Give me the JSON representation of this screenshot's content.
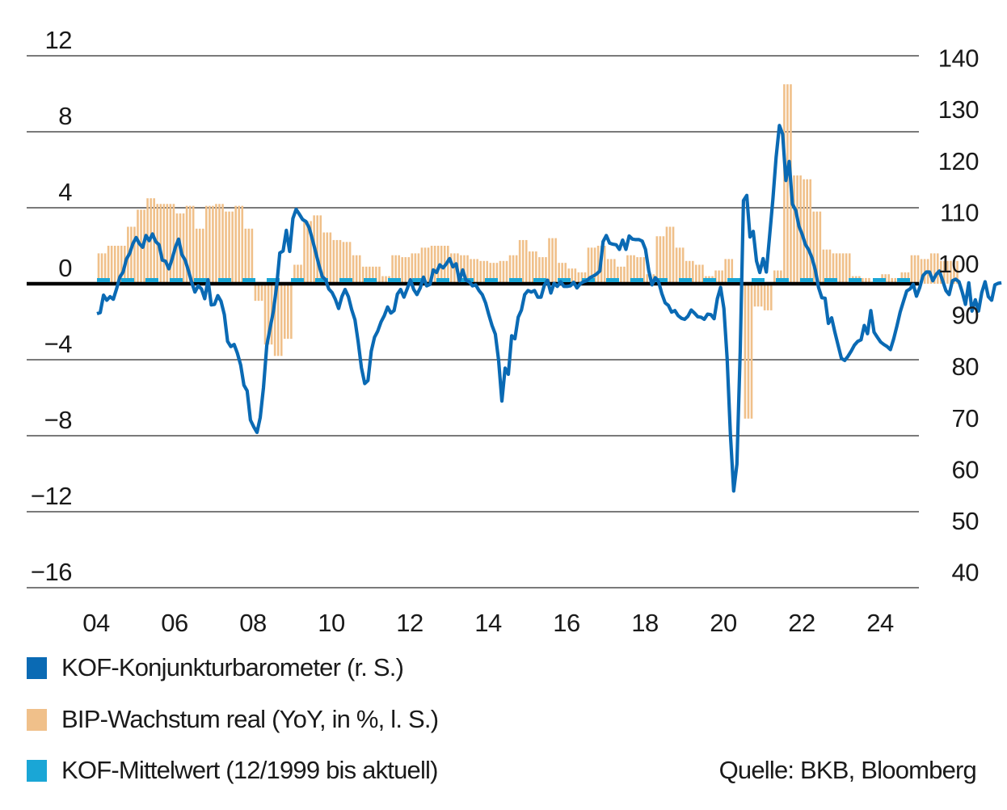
{
  "chart_data": {
    "type": "bar+line",
    "title": "",
    "xlabel": "",
    "ylabel_left": "BIP-Wachstum real (YoY, in %)",
    "ylabel_right": "KOF-Konjunkturbarometer",
    "x_ticks": [
      "04",
      "06",
      "08",
      "10",
      "12",
      "14",
      "16",
      "18",
      "20",
      "22",
      "24"
    ],
    "x_range": [
      2004.0,
      2024.95
    ],
    "y_left": {
      "range": [
        -16,
        12
      ],
      "ticks": [
        "12",
        "8",
        "4",
        "0",
        "−4",
        "−8",
        "−12",
        "−16"
      ],
      "tick_values": [
        12,
        8,
        4,
        0,
        -4,
        -8,
        -12,
        -16
      ]
    },
    "y_right": {
      "range": [
        40,
        140
      ],
      "ticks": [
        "140",
        "130",
        "120",
        "110",
        "100",
        "90",
        "80",
        "70",
        "60",
        "50",
        "40"
      ],
      "tick_values": [
        140,
        130,
        120,
        110,
        100,
        90,
        80,
        70,
        60,
        50,
        40
      ]
    },
    "grid": "horizontal",
    "legend_position": "bottom-left",
    "series": [
      {
        "name": "KOF-Konjunturbarometer (r. S.)",
        "label": "KOF-Konjunkturbarometer (r. S.)",
        "type": "line",
        "axis": "right",
        "color": "#0a6ab4",
        "frequency": "monthly",
        "start": "2004-01",
        "values": [
          93.4,
          93.6,
          97.0,
          96.0,
          96.7,
          96.2,
          98.2,
          100.5,
          101.5,
          104.0,
          105.1,
          107.0,
          108.2,
          107.0,
          106.3,
          108.6,
          107.6,
          108.9,
          107.4,
          106.8,
          103.8,
          103.6,
          102.1,
          104.0,
          106.3,
          107.9,
          104.9,
          103.8,
          101.8,
          99.5,
          97.6,
          98.8,
          98.2,
          96.3,
          100.0,
          95.1,
          95.2,
          96.9,
          95.8,
          93.2,
          88.0,
          87.0,
          87.4,
          85.7,
          83.4,
          79.5,
          78.4,
          72.7,
          71.4,
          70.3,
          73.2,
          79.0,
          87.2,
          90.5,
          93.8,
          98.6,
          105.2,
          105.6,
          109.6,
          105.5,
          111.9,
          113.7,
          112.7,
          111.7,
          111.3,
          110.1,
          107.8,
          105.3,
          102.8,
          100.6,
          100.0,
          98.2,
          97.5,
          96.2,
          94.4,
          96.7,
          98.1,
          96.7,
          94.2,
          92.2,
          87.9,
          82.9,
          79.8,
          80.4,
          86.1,
          88.8,
          90.0,
          91.8,
          93.0,
          94.7,
          93.5,
          94.0,
          97.2,
          98.1,
          96.6,
          98.2,
          100.0,
          98.1,
          97.1,
          98.4,
          100.5,
          98.8,
          99.1,
          101.9,
          101.4,
          102.9,
          102.3,
          103.1,
          104.1,
          102.5,
          103.1,
          99.8,
          101.9,
          99.9,
          99.6,
          98.8,
          99.0,
          97.9,
          97.1,
          95.5,
          93.2,
          91.1,
          89.4,
          84.4,
          76.4,
          82.8,
          81.6,
          89.1,
          88.5,
          92.7,
          94.1,
          97.1,
          97.9,
          97.6,
          97.9,
          96.6,
          96.6,
          98.9,
          99.9,
          97.4,
          99.3,
          98.7,
          99.6,
          98.7,
          98.7,
          98.8,
          99.5,
          98.4,
          99.2,
          99.6,
          99.8,
          100.4,
          100.7,
          101.1,
          101.7,
          107.4,
          108.6,
          107.1,
          106.9,
          106.8,
          105.9,
          107.7,
          105.9,
          108.5,
          107.9,
          107.8,
          107.8,
          107.5,
          105.9,
          101.7,
          99.0,
          100.4,
          99.6,
          97.3,
          95.5,
          95.0,
          93.7,
          94.0,
          93.0,
          92.5,
          92.3,
          92.9,
          94.1,
          93.5,
          92.8,
          92.7,
          92.3,
          93.3,
          93.2,
          92.4,
          96.3,
          98.5,
          94.4,
          84.7,
          69.8,
          58.9,
          64.1,
          86.1,
          115.4,
          116.4,
          108.3,
          109.4,
          103.6,
          101.4,
          104.1,
          101.5,
          108.4,
          115.6,
          123.8,
          130.0,
          128.3,
          119.3,
          123.0,
          114.7,
          113.5,
          110.4,
          108.8,
          106.8,
          105.8,
          104.2,
          101.9,
          98.5,
          96.5,
          96.4,
          91.5,
          92.6,
          89.8,
          87.2,
          84.7,
          84.3,
          85.1,
          86.1,
          87.3,
          88.0,
          88.3,
          91.1,
          89.5,
          94.0,
          89.8,
          88.8,
          87.9,
          87.4,
          87.0,
          86.4,
          88.5,
          91.0,
          93.7,
          95.8,
          97.8,
          98.2,
          99.1,
          96.8,
          98.5,
          100.8,
          101.5,
          101.5,
          99.8,
          101.0,
          101.7,
          99.8,
          97.9,
          97.1,
          99.8,
          100.1,
          99.6,
          97.6,
          95.2,
          99.4,
          93.9,
          96.1,
          93.9,
          97.5,
          99.6,
          96.7,
          96.0,
          99.0,
          99.3,
          99.4
        ]
      },
      {
        "name": "BIP-Wachstum real (YoY, in %, l. S.)",
        "label": "BIP-Wachstum real (YoY, in %, l. S.)",
        "type": "bar",
        "axis": "left",
        "color": "#f0c08a",
        "frequency": "quarterly (drawn monthly)",
        "start": "2004-Q1",
        "values": [
          1.6,
          2.0,
          2.0,
          3.0,
          3.9,
          4.5,
          4.2,
          4.2,
          3.7,
          4.1,
          2.9,
          4.1,
          4.2,
          3.8,
          4.1,
          2.9,
          -0.9,
          -3.2,
          -3.8,
          -2.9,
          1.0,
          3.3,
          3.6,
          2.7,
          2.3,
          2.2,
          1.5,
          0.9,
          0.9,
          0.4,
          1.5,
          1.4,
          1.6,
          1.9,
          2.0,
          2.0,
          1.6,
          1.5,
          1.3,
          1.2,
          1.1,
          1.2,
          1.5,
          2.3,
          1.7,
          1.4,
          2.4,
          1.1,
          0.8,
          0.6,
          1.9,
          2.0,
          1.3,
          0.9,
          1.5,
          1.4,
          0.5,
          2.5,
          3.0,
          1.9,
          1.2,
          1.0,
          0.4,
          0.7,
          1.3,
          0.3,
          -7.1,
          -1.2,
          -1.4,
          0.7,
          10.5,
          5.7,
          5.5,
          3.8,
          1.8,
          1.6,
          1.6,
          0.4,
          0.3,
          0.1,
          0.5,
          0.3,
          0.6,
          1.5,
          1.3,
          1.6,
          1.2,
          1.2
        ]
      },
      {
        "name": "KOF-Mittelwert (12/1999 bis aktuell)",
        "label": "KOF-Mittelwert (12/1999 bis aktuell)",
        "type": "line-dashed",
        "axis": "right",
        "color": "#1aa6d6",
        "value": 100.0
      }
    ],
    "zero_line": {
      "axis": "left",
      "value": 0,
      "color": "#000000"
    },
    "source": "Quelle: BKB, Bloomberg"
  },
  "legend": {
    "items": [
      {
        "label": "KOF-Konjunkturbarometer (r. S.)",
        "color": "#0a6ab4"
      },
      {
        "label": "BIP-Wachstum real (YoY, in %, l. S.)",
        "color": "#f0c08a"
      },
      {
        "label": "KOF-Mittelwert (12/1999 bis aktuell)",
        "color": "#1aa6d6"
      }
    ],
    "source": "Quelle: BKB, Bloomberg"
  }
}
